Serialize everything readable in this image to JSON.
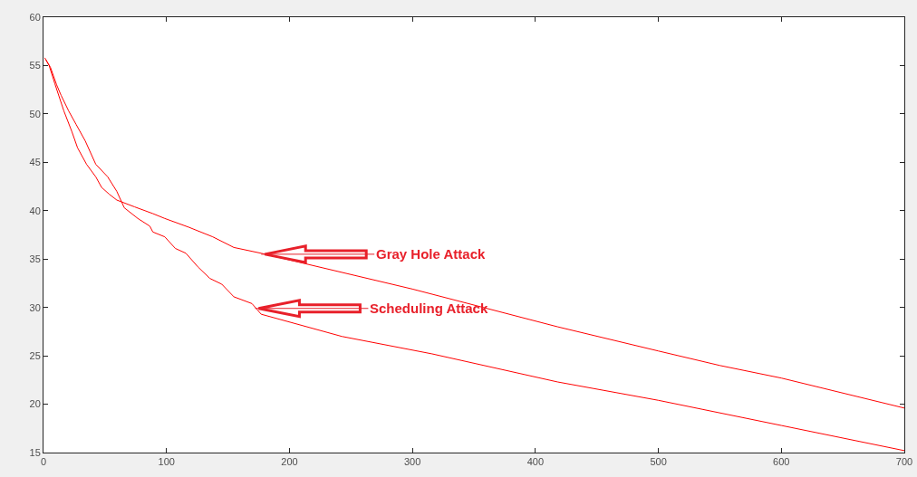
{
  "chart_data": {
    "type": "line",
    "series": [
      {
        "color": "#ff0000",
        "x": [
          1,
          4.6,
          9.3,
          16.6,
          23,
          27.7,
          35,
          42.5,
          47.3,
          53.5,
          59.6,
          74,
          88.9,
          98.6,
          118,
          137.6,
          154.8,
          177,
          300,
          418,
          500,
          550,
          600,
          700
        ],
        "values": [
          55.8,
          55,
          53.1,
          50.3,
          48.2,
          46.5,
          44.8,
          43.5,
          42.4,
          41.7,
          41.1,
          40.4,
          39.7,
          39.2,
          38.3,
          37.3,
          36.2,
          35.6,
          31.9,
          28,
          25.5,
          24,
          22.7,
          19.6
        ]
      },
      {
        "color": "#ff0000",
        "x": [
          2,
          5.7,
          10.7,
          14.4,
          20.5,
          26.6,
          34,
          42.5,
          52.2,
          59.6,
          65.7,
          76.7,
          86.5,
          88.9,
          98.6,
          107.2,
          115.8,
          125.5,
          135.3,
          145,
          154.8,
          169.5,
          177,
          242.7,
          316,
          418,
          500,
          600,
          700
        ],
        "values": [
          55.6,
          54.8,
          53,
          51.9,
          50.3,
          48.9,
          47.2,
          44.8,
          43.5,
          42,
          40.3,
          39.2,
          38.4,
          37.8,
          37.3,
          36.1,
          35.6,
          34.2,
          33,
          32.4,
          31.1,
          30.4,
          29.3,
          27,
          25.2,
          22.3,
          20.4,
          17.8,
          15.2
        ]
      }
    ],
    "xlim": [
      0,
      700
    ],
    "xticks": [
      0,
      100,
      200,
      300,
      400,
      500,
      600,
      700
    ],
    "ylim": [
      15,
      60
    ],
    "yticks": [
      15,
      20,
      25,
      30,
      35,
      40,
      45,
      50,
      55,
      60
    ],
    "grid": false,
    "marker": "none",
    "line_style": "solid",
    "annotations": [
      {
        "text": "Gray Hole Attack",
        "x": 177,
        "y": 35.5
      },
      {
        "text": "Scheduling Attack",
        "x": 172,
        "y": 29.9
      }
    ]
  }
}
